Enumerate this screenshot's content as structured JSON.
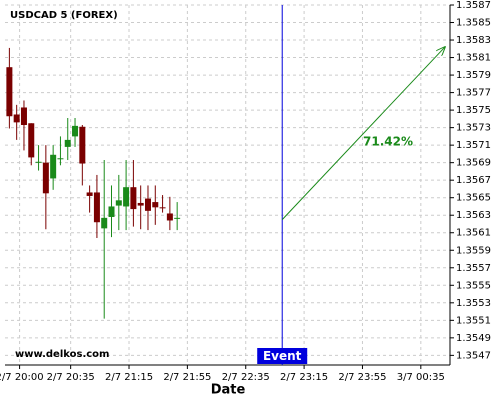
{
  "chart_data": {
    "type": "candlestick",
    "title": "USDCAD 5 (FOREX)",
    "x_label": "Date",
    "watermark": "www.delkos.com",
    "x": [
      1193,
      1198,
      1203,
      1208,
      1213,
      1218,
      1223,
      1228,
      1233,
      1238,
      1243,
      1248,
      1253,
      1258,
      1263,
      1268,
      1273,
      1278,
      1283,
      1288,
      1293,
      1298,
      1303,
      1308
    ],
    "open": [
      1.35799,
      1.35745,
      1.35753,
      1.35735,
      1.3569,
      1.3569,
      1.35672,
      1.35695,
      1.35708,
      1.3572,
      1.35731,
      1.35656,
      1.35656,
      1.35615,
      1.35628,
      1.35641,
      1.3564,
      1.35662,
      1.35644,
      1.35649,
      1.35645,
      1.35639,
      1.35632,
      1.35627
    ],
    "high": [
      1.35821,
      1.35756,
      1.35761,
      1.35735,
      1.3571,
      1.3571,
      1.3571,
      1.3572,
      1.35741,
      1.35741,
      1.35733,
      1.35664,
      1.35676,
      1.35693,
      1.35664,
      1.35676,
      1.35693,
      1.35693,
      1.35664,
      1.35664,
      1.35664,
      1.35653,
      1.35651,
      1.35645
    ],
    "low": [
      1.35729,
      1.35716,
      1.35704,
      1.35687,
      1.35681,
      1.35614,
      1.35659,
      1.35687,
      1.35693,
      1.35708,
      1.35664,
      1.35633,
      1.35604,
      1.35512,
      1.35605,
      1.35613,
      1.35613,
      1.35617,
      1.35614,
      1.35613,
      1.35619,
      1.35633,
      1.35613,
      1.35613
    ],
    "close": [
      1.35743,
      1.35736,
      1.35733,
      1.35696,
      1.35691,
      1.35655,
      1.35699,
      1.35695,
      1.35716,
      1.35732,
      1.35689,
      1.35652,
      1.35622,
      1.35627,
      1.3564,
      1.35647,
      1.35662,
      1.35637,
      1.35641,
      1.35635,
      1.35639,
      1.35638,
      1.35624,
      1.35627
    ],
    "up_color": "#1a8a1a",
    "down_color": "#7a0000",
    "xlim": [
      1190,
      1495
    ],
    "xticks": [
      {
        "value": 1200,
        "label": "2/7 20:00"
      },
      {
        "value": 1235,
        "label": "2/7 20:35"
      },
      {
        "value": 1275,
        "label": "2/7 21:15"
      },
      {
        "value": 1315,
        "label": "2/7 21:55"
      },
      {
        "value": 1355,
        "label": "2/7 22:35"
      },
      {
        "value": 1395,
        "label": "2/7 23:15"
      },
      {
        "value": 1435,
        "label": "2/7 23:55"
      },
      {
        "value": 1475,
        "label": "3/7 00:35"
      }
    ],
    "ylim": [
      1.35459,
      1.3587
    ],
    "yticks": [
      1.3547,
      1.3549,
      1.3551,
      1.3553,
      1.3555,
      1.3557,
      1.3559,
      1.3561,
      1.3563,
      1.3565,
      1.3567,
      1.3569,
      1.3571,
      1.3573,
      1.3575,
      1.3577,
      1.3579,
      1.3581,
      1.3583,
      1.3585,
      1.3587
    ],
    "grid": true,
    "event": {
      "x": 1380,
      "label": "Event",
      "color": "#0000dd"
    },
    "prediction": {
      "x": [
        1380,
        1491.5
      ],
      "y": [
        1.35625,
        1.35822
      ],
      "label": "71.42%",
      "color": "#1a8a1a"
    }
  }
}
